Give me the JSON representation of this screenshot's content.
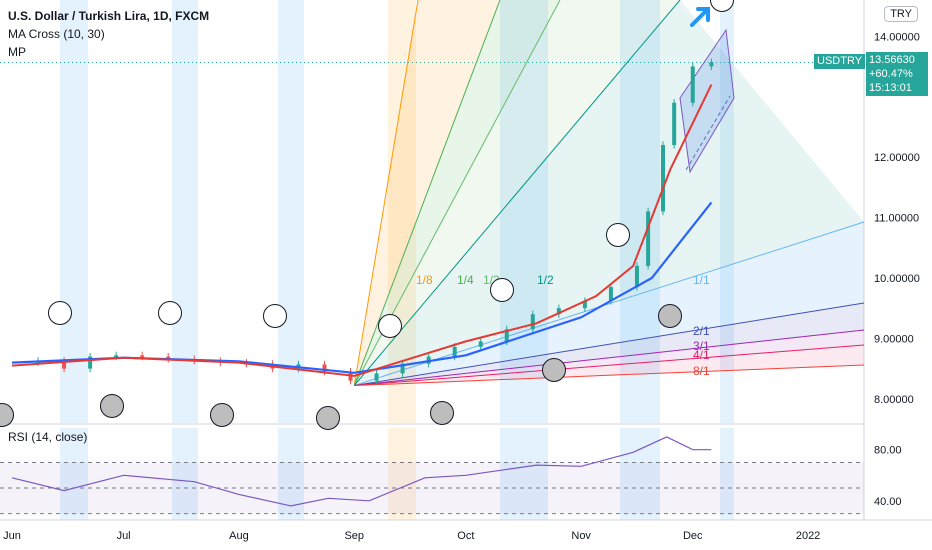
{
  "header": {
    "title": "U.S. Dollar / Turkish Lira, 1D, FXCM",
    "indicator_ma": "MA Cross (10, 30)",
    "indicator_mp": "MP"
  },
  "currency_button": "TRY",
  "symbol_tag": "USDTRY",
  "price_tag": {
    "price": "13.56630",
    "change": "+60.47%",
    "countdown": "15:13:01"
  },
  "rsi_label": "RSI (14, close)",
  "colors": {
    "up": "#26a69a",
    "down": "#ef5350",
    "ma_fast": "#e53935",
    "ma_slow": "#2962ff",
    "rsi": "#7e57c2",
    "arrow": "#2196f3"
  },
  "chart_data": [
    {
      "type": "candlestick",
      "title": "U.S. Dollar / Turkish Lira, 1D, FXCM",
      "x_ticks": [
        "Jun",
        "Jul",
        "Aug",
        "Sep",
        "Oct",
        "Nov",
        "Dec",
        "2022"
      ],
      "y_ticks": [
        "8.00000",
        "9.00000",
        "10.00000",
        "11.00000",
        "12.00000",
        "14.00000"
      ],
      "ylim": [
        7.6,
        14.6
      ],
      "close_series": [
        [
          "2021-06-01",
          8.6
        ],
        [
          "2021-06-08",
          8.63
        ],
        [
          "2021-06-15",
          8.5
        ],
        [
          "2021-06-22",
          8.7
        ],
        [
          "2021-06-29",
          8.72
        ],
        [
          "2021-07-06",
          8.7
        ],
        [
          "2021-07-13",
          8.66
        ],
        [
          "2021-07-20",
          8.63
        ],
        [
          "2021-07-27",
          8.6
        ],
        [
          "2021-08-03",
          8.58
        ],
        [
          "2021-08-10",
          8.5
        ],
        [
          "2021-08-17",
          8.57
        ],
        [
          "2021-08-24",
          8.45
        ],
        [
          "2021-08-31",
          8.3
        ],
        [
          "2021-09-07",
          8.42
        ],
        [
          "2021-09-14",
          8.58
        ],
        [
          "2021-09-21",
          8.7
        ],
        [
          "2021-09-28",
          8.86
        ],
        [
          "2021-10-05",
          8.95
        ],
        [
          "2021-10-12",
          9.15
        ],
        [
          "2021-10-19",
          9.4
        ],
        [
          "2021-10-26",
          9.5
        ],
        [
          "2021-11-02",
          9.62
        ],
        [
          "2021-11-09",
          9.85
        ],
        [
          "2021-11-16",
          10.2
        ],
        [
          "2021-11-19",
          11.1
        ],
        [
          "2021-11-23",
          12.2
        ],
        [
          "2021-11-26",
          12.9
        ],
        [
          "2021-12-01",
          13.5
        ],
        [
          "2021-12-06",
          13.57
        ]
      ],
      "ma_fast_series": [
        [
          "2021-06-01",
          8.55
        ],
        [
          "2021-07-01",
          8.68
        ],
        [
          "2021-08-01",
          8.6
        ],
        [
          "2021-09-01",
          8.38
        ],
        [
          "2021-10-01",
          8.95
        ],
        [
          "2021-10-20",
          9.25
        ],
        [
          "2021-11-05",
          9.7
        ],
        [
          "2021-11-15",
          10.2
        ],
        [
          "2021-11-25",
          11.8
        ],
        [
          "2021-12-06",
          13.2
        ]
      ],
      "ma_slow_series": [
        [
          "2021-06-01",
          8.6
        ],
        [
          "2021-07-01",
          8.68
        ],
        [
          "2021-08-01",
          8.62
        ],
        [
          "2021-09-01",
          8.43
        ],
        [
          "2021-10-01",
          8.72
        ],
        [
          "2021-11-01",
          9.35
        ],
        [
          "2021-11-20",
          10.0
        ],
        [
          "2021-12-06",
          11.25
        ]
      ],
      "gann_fan_labels": [
        "1/8",
        "1/4",
        "1/3",
        "1/2",
        "1/1",
        "2/1",
        "3/1",
        "4/1",
        "8/1"
      ],
      "last_price": 13.5663,
      "change_percent": 60.47
    },
    {
      "type": "line",
      "title": "RSI (14, close)",
      "y_ticks": [
        "40.00",
        "80.00"
      ],
      "ylim": [
        25,
        97
      ],
      "bands": [
        70,
        50,
        30
      ],
      "series": [
        [
          "2021-06-01",
          58
        ],
        [
          "2021-06-15",
          48
        ],
        [
          "2021-07-01",
          60
        ],
        [
          "2021-07-20",
          55
        ],
        [
          "2021-08-01",
          45
        ],
        [
          "2021-08-15",
          36
        ],
        [
          "2021-08-25",
          42
        ],
        [
          "2021-09-05",
          40
        ],
        [
          "2021-09-20",
          58
        ],
        [
          "2021-10-01",
          60
        ],
        [
          "2021-10-20",
          68
        ],
        [
          "2021-11-01",
          67
        ],
        [
          "2021-11-15",
          78
        ],
        [
          "2021-11-24",
          90
        ],
        [
          "2021-12-01",
          80
        ],
        [
          "2021-12-06",
          80
        ]
      ]
    }
  ]
}
